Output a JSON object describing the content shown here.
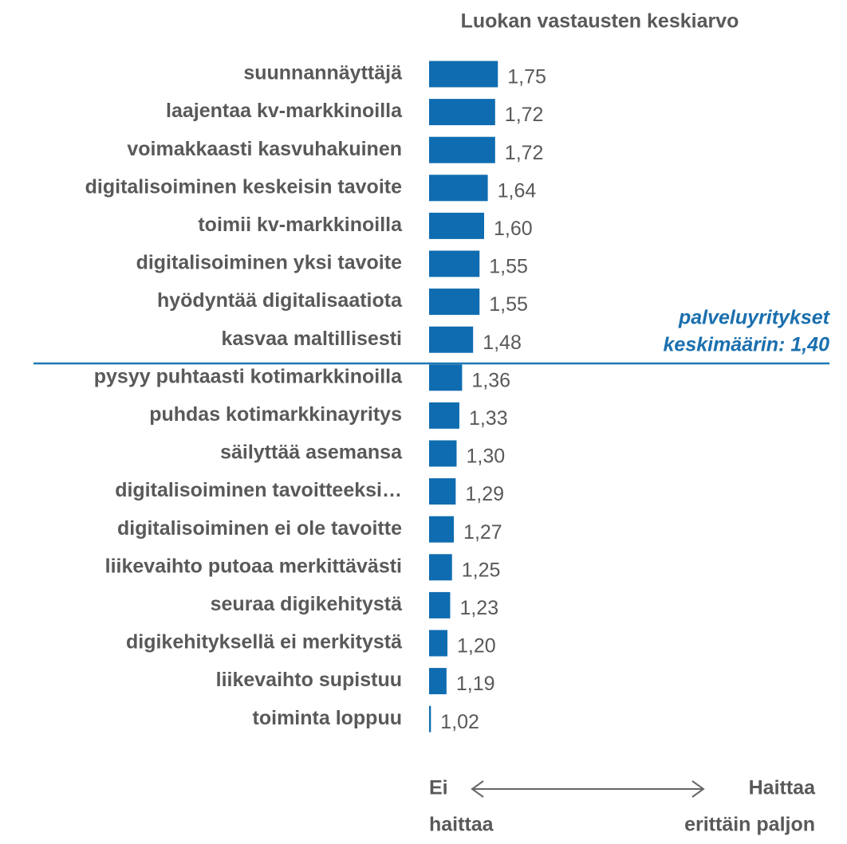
{
  "chart_data": {
    "type": "barh",
    "title": "Luokan vastausten keskiarvo",
    "categories": [
      "suunnannäyttäjä",
      "laajentaa kv-markkinoilla",
      "voimakkaasti kasvuhakuinen",
      "digitalisoiminen keskeisin tavoite",
      "toimii kv-markkinoilla",
      "digitalisoiminen yksi tavoite",
      "hyödyntää digitalisaatiota",
      "kasvaa maltillisesti",
      "pysyy puhtaasti kotimarkkinoilla",
      "puhdas kotimarkkinayritys",
      "säilyttää asemansa",
      "digitalisoiminen tavoitteeksi…",
      "digitalisoiminen ei ole tavoitte",
      "liikevaihto putoaa merkittävästi",
      "seuraa digikehitystä",
      "digikehityksellä ei merkitystä",
      "liikevaihto supistuu",
      "toiminta loppuu"
    ],
    "values": [
      1.75,
      1.72,
      1.72,
      1.64,
      1.6,
      1.55,
      1.55,
      1.48,
      1.36,
      1.33,
      1.3,
      1.29,
      1.27,
      1.25,
      1.23,
      1.2,
      1.19,
      1.02
    ],
    "value_labels": [
      "1,75",
      "1,72",
      "1,72",
      "1,64",
      "1,60",
      "1,55",
      "1,55",
      "1,48",
      "1,36",
      "1,33",
      "1,30",
      "1,29",
      "1,27",
      "1,25",
      "1,23",
      "1,20",
      "1,19",
      "1,02"
    ],
    "color": "#0f6cb0",
    "xlim": [
      1,
      4
    ],
    "annotation": [
      "palveluyritykset",
      "keskimäärin: 1,40"
    ],
    "scale_labels": {
      "low": [
        "Ei",
        "haittaa"
      ],
      "high": [
        "Haittaa",
        "erittäin paljon"
      ]
    }
  }
}
